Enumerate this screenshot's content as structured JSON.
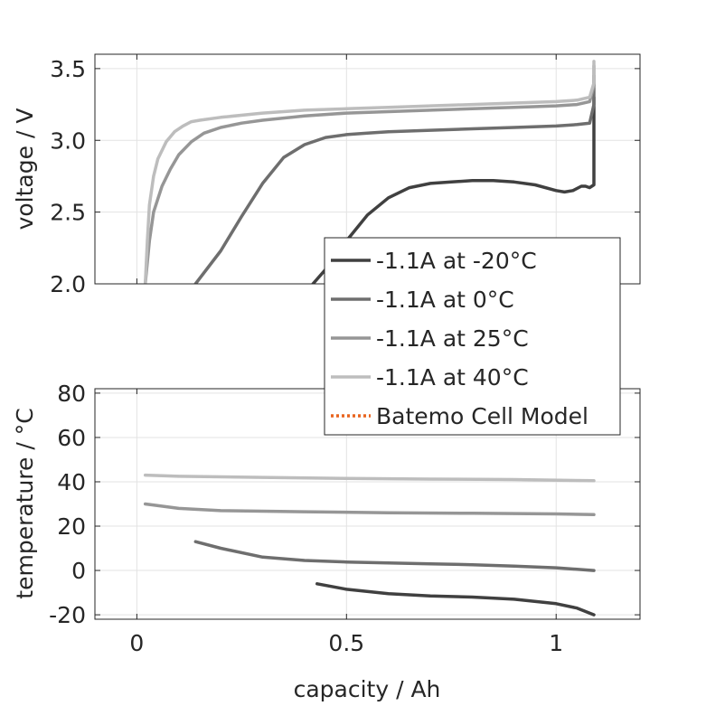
{
  "chart_data": [
    {
      "type": "line",
      "panel": "voltage",
      "xlabel": "",
      "ylabel": "voltage / V",
      "xlim": [
        -0.1,
        1.2
      ],
      "ylim": [
        2.0,
        3.6
      ],
      "grid": true,
      "xticks": [
        0,
        0.5,
        1
      ],
      "xtick_labels": [
        "",
        "",
        ""
      ],
      "yticks": [
        2.0,
        2.5,
        3.0,
        3.5
      ],
      "ytick_labels": [
        "2.0",
        "2.5",
        "3.0",
        "3.5"
      ],
      "legend": {
        "placement": "between-panels-right",
        "entries": [
          {
            "label": "-1.1A at -20°C",
            "color": "#404040",
            "style": "solid"
          },
          {
            "label": "-1.1A at 0°C",
            "color": "#6e6e6e",
            "style": "solid"
          },
          {
            "label": "-1.1A at 25°C",
            "color": "#969696",
            "style": "solid"
          },
          {
            "label": "-1.1A at 40°C",
            "color": "#bdbdbd",
            "style": "solid"
          },
          {
            "label": "Batemo Cell Model",
            "color": "#e8641e",
            "style": "dotted"
          }
        ]
      },
      "series": [
        {
          "name": "-1.1A at -20°C",
          "color": "#404040",
          "x": [
            0.42,
            0.45,
            0.5,
            0.55,
            0.6,
            0.65,
            0.7,
            0.75,
            0.8,
            0.85,
            0.9,
            0.95,
            1.0,
            1.02,
            1.04,
            1.06,
            1.07,
            1.08,
            1.085,
            1.09,
            1.09
          ],
          "y": [
            2.0,
            2.1,
            2.3,
            2.48,
            2.6,
            2.67,
            2.7,
            2.71,
            2.72,
            2.72,
            2.71,
            2.69,
            2.65,
            2.64,
            2.65,
            2.68,
            2.68,
            2.67,
            2.68,
            2.69,
            3.3
          ]
        },
        {
          "name": "-1.1A at 0°C",
          "color": "#6e6e6e",
          "x": [
            0.14,
            0.2,
            0.25,
            0.3,
            0.35,
            0.4,
            0.45,
            0.5,
            0.55,
            0.6,
            0.7,
            0.8,
            0.9,
            1.0,
            1.05,
            1.08,
            1.09,
            1.09
          ],
          "y": [
            2.0,
            2.23,
            2.47,
            2.7,
            2.88,
            2.97,
            3.02,
            3.04,
            3.05,
            3.06,
            3.07,
            3.08,
            3.09,
            3.1,
            3.11,
            3.12,
            3.25,
            3.45
          ]
        },
        {
          "name": "-1.1A at 25°C",
          "color": "#969696",
          "x": [
            0.02,
            0.03,
            0.04,
            0.06,
            0.08,
            0.1,
            0.13,
            0.16,
            0.2,
            0.25,
            0.3,
            0.4,
            0.5,
            0.6,
            0.7,
            0.8,
            0.9,
            1.0,
            1.05,
            1.08,
            1.09,
            1.09
          ],
          "y": [
            2.0,
            2.3,
            2.5,
            2.68,
            2.8,
            2.9,
            2.99,
            3.05,
            3.09,
            3.12,
            3.14,
            3.17,
            3.19,
            3.2,
            3.21,
            3.22,
            3.23,
            3.24,
            3.25,
            3.27,
            3.38,
            3.52
          ]
        },
        {
          "name": "-1.1A at 40°C",
          "color": "#bdbdbd",
          "x": [
            0.02,
            0.025,
            0.03,
            0.04,
            0.05,
            0.07,
            0.09,
            0.11,
            0.13,
            0.15,
            0.2,
            0.3,
            0.4,
            0.5,
            0.6,
            0.7,
            0.8,
            0.9,
            1.0,
            1.05,
            1.08,
            1.09,
            1.09
          ],
          "y": [
            2.0,
            2.3,
            2.55,
            2.75,
            2.87,
            2.99,
            3.06,
            3.1,
            3.13,
            3.14,
            3.16,
            3.19,
            3.21,
            3.22,
            3.23,
            3.24,
            3.25,
            3.26,
            3.27,
            3.28,
            3.3,
            3.4,
            3.55
          ]
        }
      ]
    },
    {
      "type": "line",
      "panel": "temperature",
      "xlabel": "capacity / Ah",
      "ylabel": "temperature / °C",
      "xlim": [
        -0.1,
        1.2
      ],
      "ylim": [
        -22,
        82
      ],
      "grid": true,
      "xticks": [
        0,
        0.5,
        1
      ],
      "xtick_labels": [
        "0",
        "0.5",
        "1"
      ],
      "yticks": [
        -20,
        0,
        20,
        40,
        60,
        80
      ],
      "ytick_labels": [
        "-20",
        "0",
        "20",
        "40",
        "60",
        "80"
      ],
      "series": [
        {
          "name": "-1.1A at -20°C",
          "color": "#404040",
          "x": [
            0.43,
            0.5,
            0.6,
            0.7,
            0.8,
            0.9,
            1.0,
            1.05,
            1.09
          ],
          "y": [
            -6,
            -8.5,
            -10.5,
            -11.5,
            -12,
            -13,
            -15,
            -17,
            -20
          ]
        },
        {
          "name": "-1.1A at 0°C",
          "color": "#6e6e6e",
          "x": [
            0.14,
            0.2,
            0.3,
            0.4,
            0.5,
            0.6,
            0.7,
            0.8,
            0.9,
            1.0,
            1.09
          ],
          "y": [
            13,
            10,
            6,
            4.5,
            3.8,
            3.4,
            3.0,
            2.6,
            2.0,
            1.2,
            0
          ]
        },
        {
          "name": "-1.1A at 25°C",
          "color": "#969696",
          "x": [
            0.02,
            0.1,
            0.2,
            0.4,
            0.6,
            0.8,
            1.0,
            1.09
          ],
          "y": [
            30,
            28,
            27,
            26.5,
            26,
            25.8,
            25.5,
            25.2
          ]
        },
        {
          "name": "-1.1A at 40°C",
          "color": "#bdbdbd",
          "x": [
            0.02,
            0.1,
            0.3,
            0.5,
            0.7,
            0.9,
            1.09
          ],
          "y": [
            43,
            42.5,
            42,
            41.5,
            41.2,
            41,
            40.5
          ]
        }
      ]
    }
  ]
}
